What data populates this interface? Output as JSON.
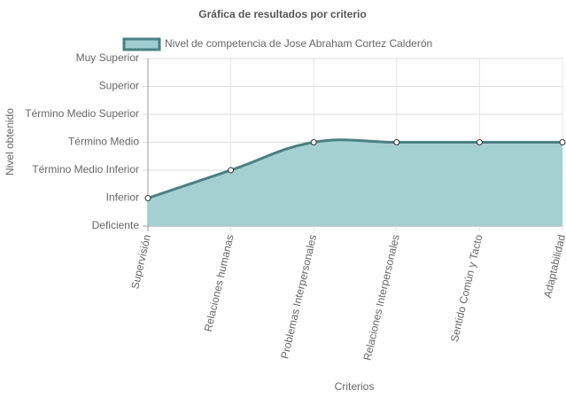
{
  "chart_data": {
    "type": "line",
    "title": "Gráfica de resultados por criterio",
    "x_label": "Criterios",
    "y_label": "Nivel obtenido",
    "categories": [
      "Supervisión",
      "Relaciones humanas",
      "Problemas Interpersonales",
      "Relaciones Interpersonales",
      "Sentido Común y Tacto",
      "Adaptabilidad"
    ],
    "series": [
      {
        "name": "Nivel de competencia de Jose Abraham Cortez Calderón",
        "color": "#4b7f83",
        "fill": "#a0cdd0",
        "values": [
          1,
          2,
          3,
          3,
          3,
          3
        ]
      }
    ],
    "ylim": [
      0,
      6
    ],
    "yticks": [
      {
        "value": 0,
        "label": "Deficiente"
      },
      {
        "value": 1,
        "label": "Inferior"
      },
      {
        "value": 2,
        "label": "Término Medio Inferior"
      },
      {
        "value": 3,
        "label": "Término Medio"
      },
      {
        "value": 4,
        "label": "Término Medio Superior"
      },
      {
        "value": 5,
        "label": "Superior"
      },
      {
        "value": 6,
        "label": "Muy Superior"
      }
    ],
    "grid": true
  }
}
